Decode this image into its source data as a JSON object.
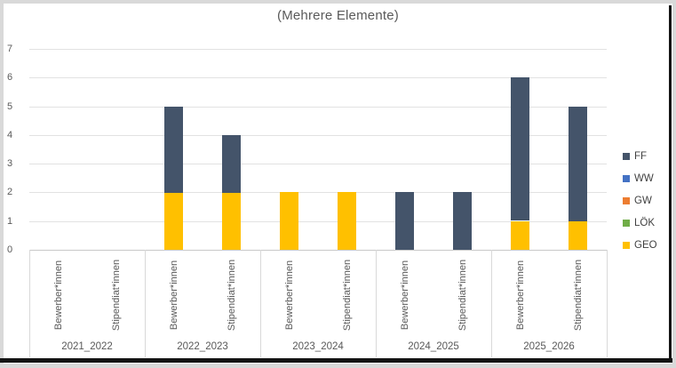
{
  "chart_data": {
    "type": "bar",
    "stacked": true,
    "title": "(Mehrere Elemente)",
    "y_axis": {
      "min": 0,
      "max": 7,
      "tick_interval": 1,
      "ticks": [
        0,
        1,
        2,
        3,
        4,
        5,
        6,
        7
      ]
    },
    "grid": true,
    "legend_position": "right",
    "legend_order": [
      "FF",
      "WW",
      "GW",
      "LÖK",
      "GEO"
    ],
    "stack_order_bottom_to_top": [
      "GEO",
      "LÖK",
      "GW",
      "WW",
      "FF"
    ],
    "groups": [
      "2021_2022",
      "2022_2023",
      "2023_2024",
      "2024_2025",
      "2025_2026"
    ],
    "columns": [
      {
        "group": "2021_2022",
        "label": "Bewerber*innen"
      },
      {
        "group": "2021_2022",
        "label": "Stipendiat*innen"
      },
      {
        "group": "2022_2023",
        "label": "Bewerber*innen"
      },
      {
        "group": "2022_2023",
        "label": "Stipendiat*innen"
      },
      {
        "group": "2023_2024",
        "label": "Bewerber*innen"
      },
      {
        "group": "2023_2024",
        "label": "Stipendiat*innen"
      },
      {
        "group": "2024_2025",
        "label": "Bewerber*innen"
      },
      {
        "group": "2024_2025",
        "label": "Stipendiat*innen"
      },
      {
        "group": "2025_2026",
        "label": "Bewerber*innen"
      },
      {
        "group": "2025_2026",
        "label": "Stipendiat*innen"
      }
    ],
    "series": [
      {
        "name": "FF",
        "color": "#44546A",
        "values": [
          0,
          0,
          3,
          2,
          0,
          0,
          2,
          2,
          5,
          4
        ]
      },
      {
        "name": "WW",
        "color": "#4472C4",
        "values": [
          0,
          0,
          0,
          0,
          0,
          0,
          0,
          0,
          0,
          0
        ]
      },
      {
        "name": "GW",
        "color": "#ED7D31",
        "values": [
          0,
          0,
          0,
          0,
          0,
          0,
          0,
          0,
          0,
          0
        ]
      },
      {
        "name": "LÖK",
        "color": "#70AD47",
        "values": [
          0,
          0,
          0,
          0,
          0,
          0,
          0,
          0,
          0,
          0
        ]
      },
      {
        "name": "GEO",
        "color": "#FFC000",
        "values": [
          0,
          0,
          2,
          2,
          2,
          2,
          0,
          0,
          1,
          1
        ]
      }
    ],
    "column_totals": [
      0,
      0,
      5,
      4,
      2,
      2,
      2,
      2,
      6,
      5
    ],
    "colors": {
      "gridline": "#e2e2e2",
      "axis_line": "#c9c9c9",
      "axis_text": "#595959",
      "legend_text": "#3f3f3f",
      "title_text": "#595959"
    }
  }
}
